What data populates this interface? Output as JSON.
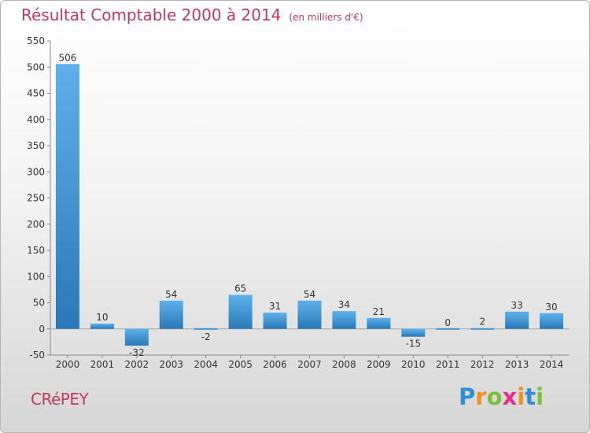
{
  "chart_data": {
    "type": "bar",
    "title": "Résultat Comptable 2000 à 2014",
    "subtitle": "(en milliers d'€)",
    "categories": [
      "2000",
      "2001",
      "2002",
      "2003",
      "2004",
      "2005",
      "2006",
      "2007",
      "2008",
      "2009",
      "2010",
      "2011",
      "2012",
      "2013",
      "2014"
    ],
    "values": [
      506,
      10,
      -32,
      54,
      -2,
      65,
      31,
      54,
      34,
      21,
      -15,
      0,
      2,
      33,
      30
    ],
    "value_labels": [
      "506",
      "10",
      "-32",
      "54",
      "-2",
      "65",
      "31",
      "54",
      "34",
      "21",
      "-15",
      "0",
      "2",
      "33",
      "30"
    ],
    "ylim": [
      -50,
      550
    ],
    "yticks": [
      -50,
      0,
      50,
      100,
      150,
      200,
      250,
      300,
      350,
      400,
      450,
      500,
      550
    ],
    "xlabel": "",
    "ylabel": "",
    "grid": false,
    "colors": {
      "bar_light": "#5eb1ea",
      "bar_dark": "#2a78b7",
      "title": "#c0395e"
    }
  },
  "footer": {
    "commune": "CRéPEY",
    "logo_letters": [
      "P",
      "r",
      "o",
      "x",
      "i",
      "t",
      "i"
    ],
    "logo_colors": [
      "#2e8fd3",
      "#f0921c",
      "#7bbf3a",
      "#e0318a",
      "#f0921c",
      "#2e8fd3",
      "#7bbf3a"
    ]
  }
}
